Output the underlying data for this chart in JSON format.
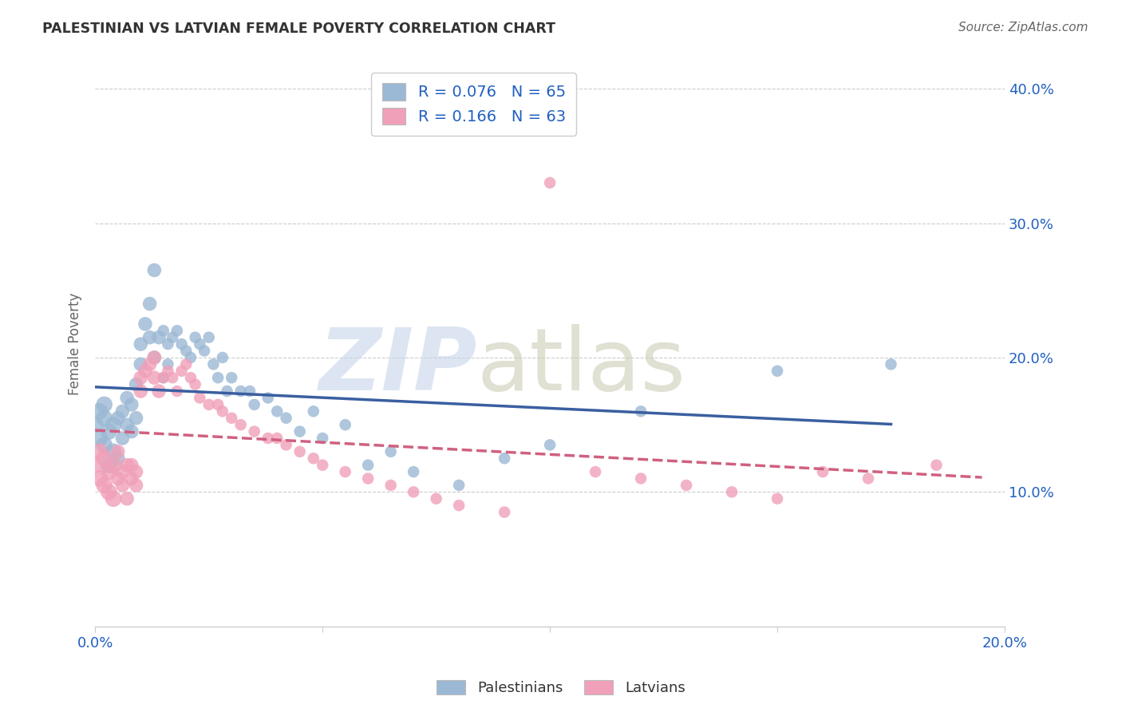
{
  "title": "PALESTINIAN VS LATVIAN FEMALE POVERTY CORRELATION CHART",
  "source": "Source: ZipAtlas.com",
  "ylabel_label": "Female Poverty",
  "xlim": [
    0.0,
    0.2
  ],
  "ylim": [
    0.0,
    0.42
  ],
  "xticks": [
    0.0,
    0.05,
    0.1,
    0.15,
    0.2
  ],
  "xtick_labels": [
    "0.0%",
    "",
    "",
    "",
    "20.0%"
  ],
  "ytick_labels": [
    "10.0%",
    "20.0%",
    "30.0%",
    "40.0%"
  ],
  "yticks": [
    0.1,
    0.2,
    0.3,
    0.4
  ],
  "blue_color": "#9bb8d4",
  "pink_color": "#f0a0b8",
  "blue_line_color": "#3a5fa0",
  "pink_line_color": "#d06080",
  "R_blue": 0.076,
  "N_blue": 65,
  "R_pink": 0.166,
  "N_pink": 63,
  "blue_scatter_x": [
    0.0,
    0.001,
    0.001,
    0.002,
    0.002,
    0.002,
    0.003,
    0.003,
    0.004,
    0.004,
    0.005,
    0.005,
    0.006,
    0.006,
    0.007,
    0.007,
    0.008,
    0.008,
    0.009,
    0.009,
    0.01,
    0.01,
    0.011,
    0.012,
    0.012,
    0.013,
    0.013,
    0.014,
    0.015,
    0.015,
    0.016,
    0.016,
    0.017,
    0.018,
    0.019,
    0.02,
    0.021,
    0.022,
    0.023,
    0.024,
    0.025,
    0.026,
    0.027,
    0.028,
    0.029,
    0.03,
    0.032,
    0.034,
    0.035,
    0.038,
    0.04,
    0.042,
    0.045,
    0.048,
    0.05,
    0.055,
    0.06,
    0.065,
    0.07,
    0.08,
    0.09,
    0.1,
    0.12,
    0.15,
    0.175
  ],
  "blue_scatter_y": [
    0.15,
    0.16,
    0.14,
    0.155,
    0.135,
    0.165,
    0.145,
    0.12,
    0.15,
    0.13,
    0.155,
    0.125,
    0.16,
    0.14,
    0.15,
    0.17,
    0.145,
    0.165,
    0.155,
    0.18,
    0.21,
    0.195,
    0.225,
    0.215,
    0.24,
    0.265,
    0.2,
    0.215,
    0.22,
    0.185,
    0.21,
    0.195,
    0.215,
    0.22,
    0.21,
    0.205,
    0.2,
    0.215,
    0.21,
    0.205,
    0.215,
    0.195,
    0.185,
    0.2,
    0.175,
    0.185,
    0.175,
    0.175,
    0.165,
    0.17,
    0.16,
    0.155,
    0.145,
    0.16,
    0.14,
    0.15,
    0.12,
    0.13,
    0.115,
    0.105,
    0.125,
    0.135,
    0.16,
    0.19,
    0.195
  ],
  "pink_scatter_x": [
    0.0,
    0.001,
    0.001,
    0.002,
    0.002,
    0.003,
    0.003,
    0.004,
    0.004,
    0.005,
    0.005,
    0.006,
    0.006,
    0.007,
    0.007,
    0.008,
    0.008,
    0.009,
    0.009,
    0.01,
    0.01,
    0.011,
    0.012,
    0.013,
    0.013,
    0.014,
    0.015,
    0.016,
    0.017,
    0.018,
    0.019,
    0.02,
    0.021,
    0.022,
    0.023,
    0.025,
    0.027,
    0.028,
    0.03,
    0.032,
    0.035,
    0.038,
    0.04,
    0.042,
    0.045,
    0.048,
    0.05,
    0.055,
    0.06,
    0.065,
    0.07,
    0.075,
    0.08,
    0.09,
    0.1,
    0.11,
    0.12,
    0.13,
    0.14,
    0.15,
    0.16,
    0.17,
    0.185
  ],
  "pink_scatter_y": [
    0.12,
    0.13,
    0.11,
    0.125,
    0.105,
    0.115,
    0.1,
    0.12,
    0.095,
    0.11,
    0.13,
    0.115,
    0.105,
    0.12,
    0.095,
    0.11,
    0.12,
    0.105,
    0.115,
    0.185,
    0.175,
    0.19,
    0.195,
    0.2,
    0.185,
    0.175,
    0.185,
    0.19,
    0.185,
    0.175,
    0.19,
    0.195,
    0.185,
    0.18,
    0.17,
    0.165,
    0.165,
    0.16,
    0.155,
    0.15,
    0.145,
    0.14,
    0.14,
    0.135,
    0.13,
    0.125,
    0.12,
    0.115,
    0.11,
    0.105,
    0.1,
    0.095,
    0.09,
    0.085,
    0.33,
    0.115,
    0.11,
    0.105,
    0.1,
    0.095,
    0.115,
    0.11,
    0.12
  ]
}
